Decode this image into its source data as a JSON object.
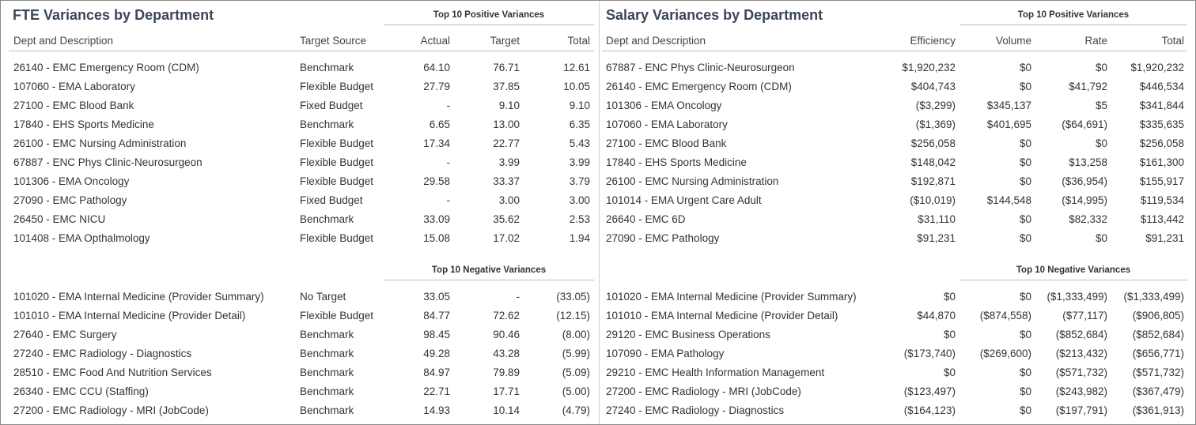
{
  "fte": {
    "title": "FTE Variances by Department",
    "columns": [
      "Dept and Description",
      "Target Source",
      "Actual",
      "Target",
      "Total"
    ],
    "positive": {
      "heading": "Top 10 Positive Variances",
      "rows": [
        [
          "26140 - EMC Emergency Room (CDM)",
          "Benchmark",
          "64.10",
          "76.71",
          "12.61"
        ],
        [
          "107060 - EMA Laboratory",
          "Flexible Budget",
          "27.79",
          "37.85",
          "10.05"
        ],
        [
          "27100 - EMC Blood Bank",
          "Fixed Budget",
          "-",
          "9.10",
          "9.10"
        ],
        [
          "17840 - EHS Sports Medicine",
          "Benchmark",
          "6.65",
          "13.00",
          "6.35"
        ],
        [
          "26100 - EMC Nursing Administration",
          "Flexible Budget",
          "17.34",
          "22.77",
          "5.43"
        ],
        [
          "67887 - ENC Phys Clinic-Neurosurgeon",
          "Flexible Budget",
          "-",
          "3.99",
          "3.99"
        ],
        [
          "101306 - EMA Oncology",
          "Flexible Budget",
          "29.58",
          "33.37",
          "3.79"
        ],
        [
          "27090 - EMC Pathology",
          "Fixed Budget",
          "-",
          "3.00",
          "3.00"
        ],
        [
          "26450 - EMC NICU",
          "Benchmark",
          "33.09",
          "35.62",
          "2.53"
        ],
        [
          "101408 - EMA Opthalmology",
          "Flexible Budget",
          "15.08",
          "17.02",
          "1.94"
        ]
      ]
    },
    "negative": {
      "heading": "Top 10 Negative Variances",
      "rows": [
        [
          "101020 - EMA Internal Medicine (Provider Summary)",
          "No Target",
          "33.05",
          "-",
          "(33.05)"
        ],
        [
          "101010 - EMA Internal Medicine (Provider Detail)",
          "Flexible Budget",
          "84.77",
          "72.62",
          "(12.15)"
        ],
        [
          "27640 - EMC Surgery",
          "Benchmark",
          "98.45",
          "90.46",
          "(8.00)"
        ],
        [
          "27240 - EMC Radiology - Diagnostics",
          "Benchmark",
          "49.28",
          "43.28",
          "(5.99)"
        ],
        [
          "28510 - EMC Food And Nutrition Services",
          "Benchmark",
          "84.97",
          "79.89",
          "(5.09)"
        ],
        [
          "26340 - EMC CCU (Staffing)",
          "Benchmark",
          "22.71",
          "17.71",
          "(5.00)"
        ],
        [
          "27200 - EMC Radiology - MRI (JobCode)",
          "Benchmark",
          "14.93",
          "10.14",
          "(4.79)"
        ]
      ]
    }
  },
  "salary": {
    "title": "Salary Variances by Department",
    "columns": [
      "Dept and Description",
      "Efficiency",
      "Volume",
      "Rate",
      "Total"
    ],
    "positive": {
      "heading": "Top 10 Positive Variances",
      "rows": [
        [
          "67887 - ENC Phys Clinic-Neurosurgeon",
          "$1,920,232",
          "$0",
          "$0",
          "$1,920,232"
        ],
        [
          "26140 - EMC Emergency Room (CDM)",
          "$404,743",
          "$0",
          "$41,792",
          "$446,534"
        ],
        [
          "101306 - EMA Oncology",
          "($3,299)",
          "$345,137",
          "$5",
          "$341,844"
        ],
        [
          "107060 - EMA Laboratory",
          "($1,369)",
          "$401,695",
          "($64,691)",
          "$335,635"
        ],
        [
          "27100 - EMC Blood Bank",
          "$256,058",
          "$0",
          "$0",
          "$256,058"
        ],
        [
          "17840 - EHS Sports Medicine",
          "$148,042",
          "$0",
          "$13,258",
          "$161,300"
        ],
        [
          "26100 - EMC Nursing Administration",
          "$192,871",
          "$0",
          "($36,954)",
          "$155,917"
        ],
        [
          "101014 - EMA Urgent Care Adult",
          "($10,019)",
          "$144,548",
          "($14,995)",
          "$119,534"
        ],
        [
          "26640 - EMC 6D",
          "$31,110",
          "$0",
          "$82,332",
          "$113,442"
        ],
        [
          "27090 - EMC Pathology",
          "$91,231",
          "$0",
          "$0",
          "$91,231"
        ]
      ]
    },
    "negative": {
      "heading": "Top 10 Negative Variances",
      "rows": [
        [
          "101020 - EMA Internal Medicine (Provider Summary)",
          "$0",
          "$0",
          "($1,333,499)",
          "($1,333,499)"
        ],
        [
          "101010 - EMA Internal Medicine (Provider Detail)",
          "$44,870",
          "($874,558)",
          "($77,117)",
          "($906,805)"
        ],
        [
          "29120 - EMC Business Operations",
          "$0",
          "$0",
          "($852,684)",
          "($852,684)"
        ],
        [
          "107090 - EMA Pathology",
          "($173,740)",
          "($269,600)",
          "($213,432)",
          "($656,771)"
        ],
        [
          "29210 - EMC Health Information Management",
          "$0",
          "$0",
          "($571,732)",
          "($571,732)"
        ],
        [
          "27200 - EMC Radiology - MRI (JobCode)",
          "($123,497)",
          "$0",
          "($243,982)",
          "($367,479)"
        ],
        [
          "27240 - EMC Radiology - Diagnostics",
          "($164,123)",
          "$0",
          "($197,791)",
          "($361,913)"
        ]
      ]
    }
  }
}
